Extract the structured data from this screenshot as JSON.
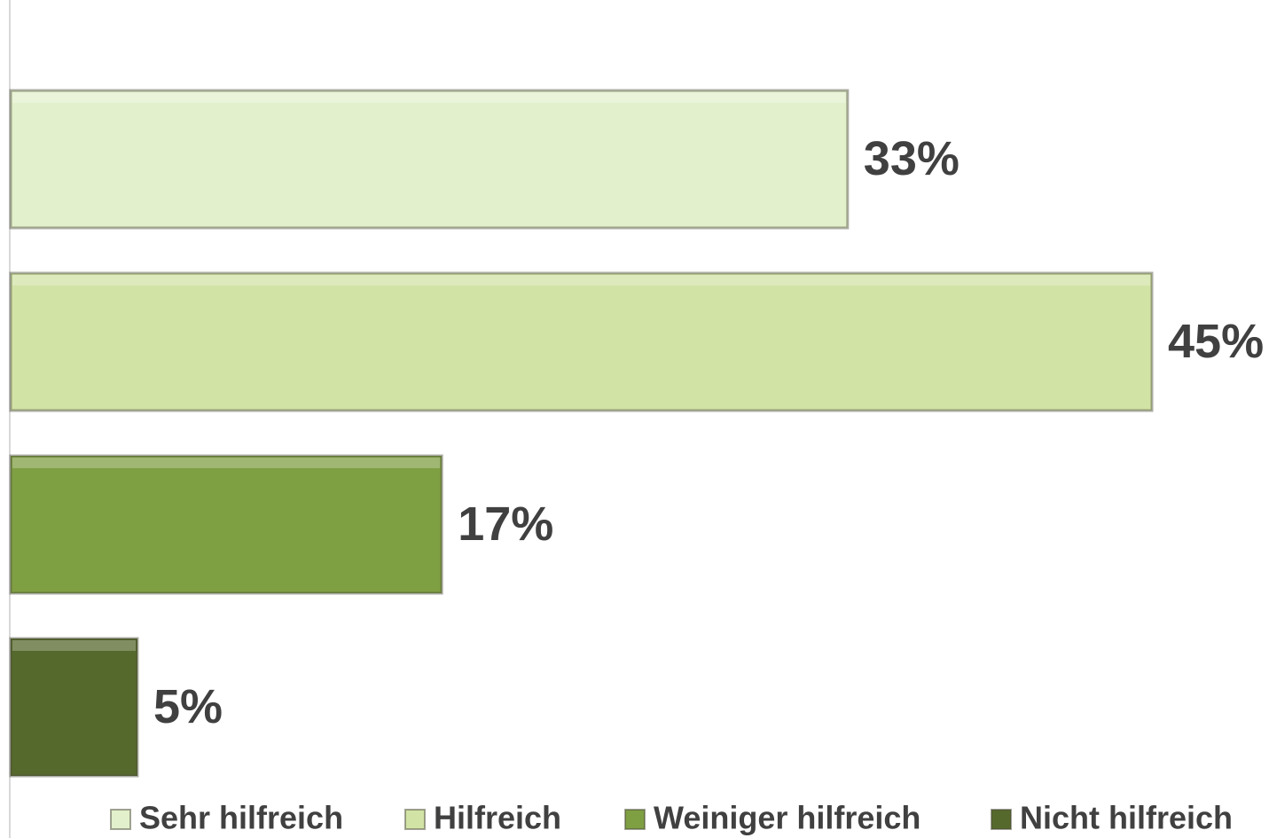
{
  "chart_data": {
    "type": "hbar",
    "categories": [
      null
    ],
    "series": [
      {
        "name": "Sehr hilfreich",
        "color": "#e2f0cb",
        "values": [
          33
        ],
        "value_labels": [
          "33%"
        ]
      },
      {
        "name": "Hilfreich",
        "color": "#d2e3a6",
        "values": [
          45
        ],
        "value_labels": [
          "45%"
        ]
      },
      {
        "name": "Weiniger hilfreich",
        "color": "#7f9f43",
        "values": [
          17
        ],
        "value_labels": [
          "17%"
        ]
      },
      {
        "name": "Nicht hilfreich",
        "color": "#56692c",
        "values": [
          5
        ],
        "value_labels": [
          "5%"
        ]
      }
    ],
    "xlim": [
      0,
      50
    ],
    "legend": "bottom"
  }
}
